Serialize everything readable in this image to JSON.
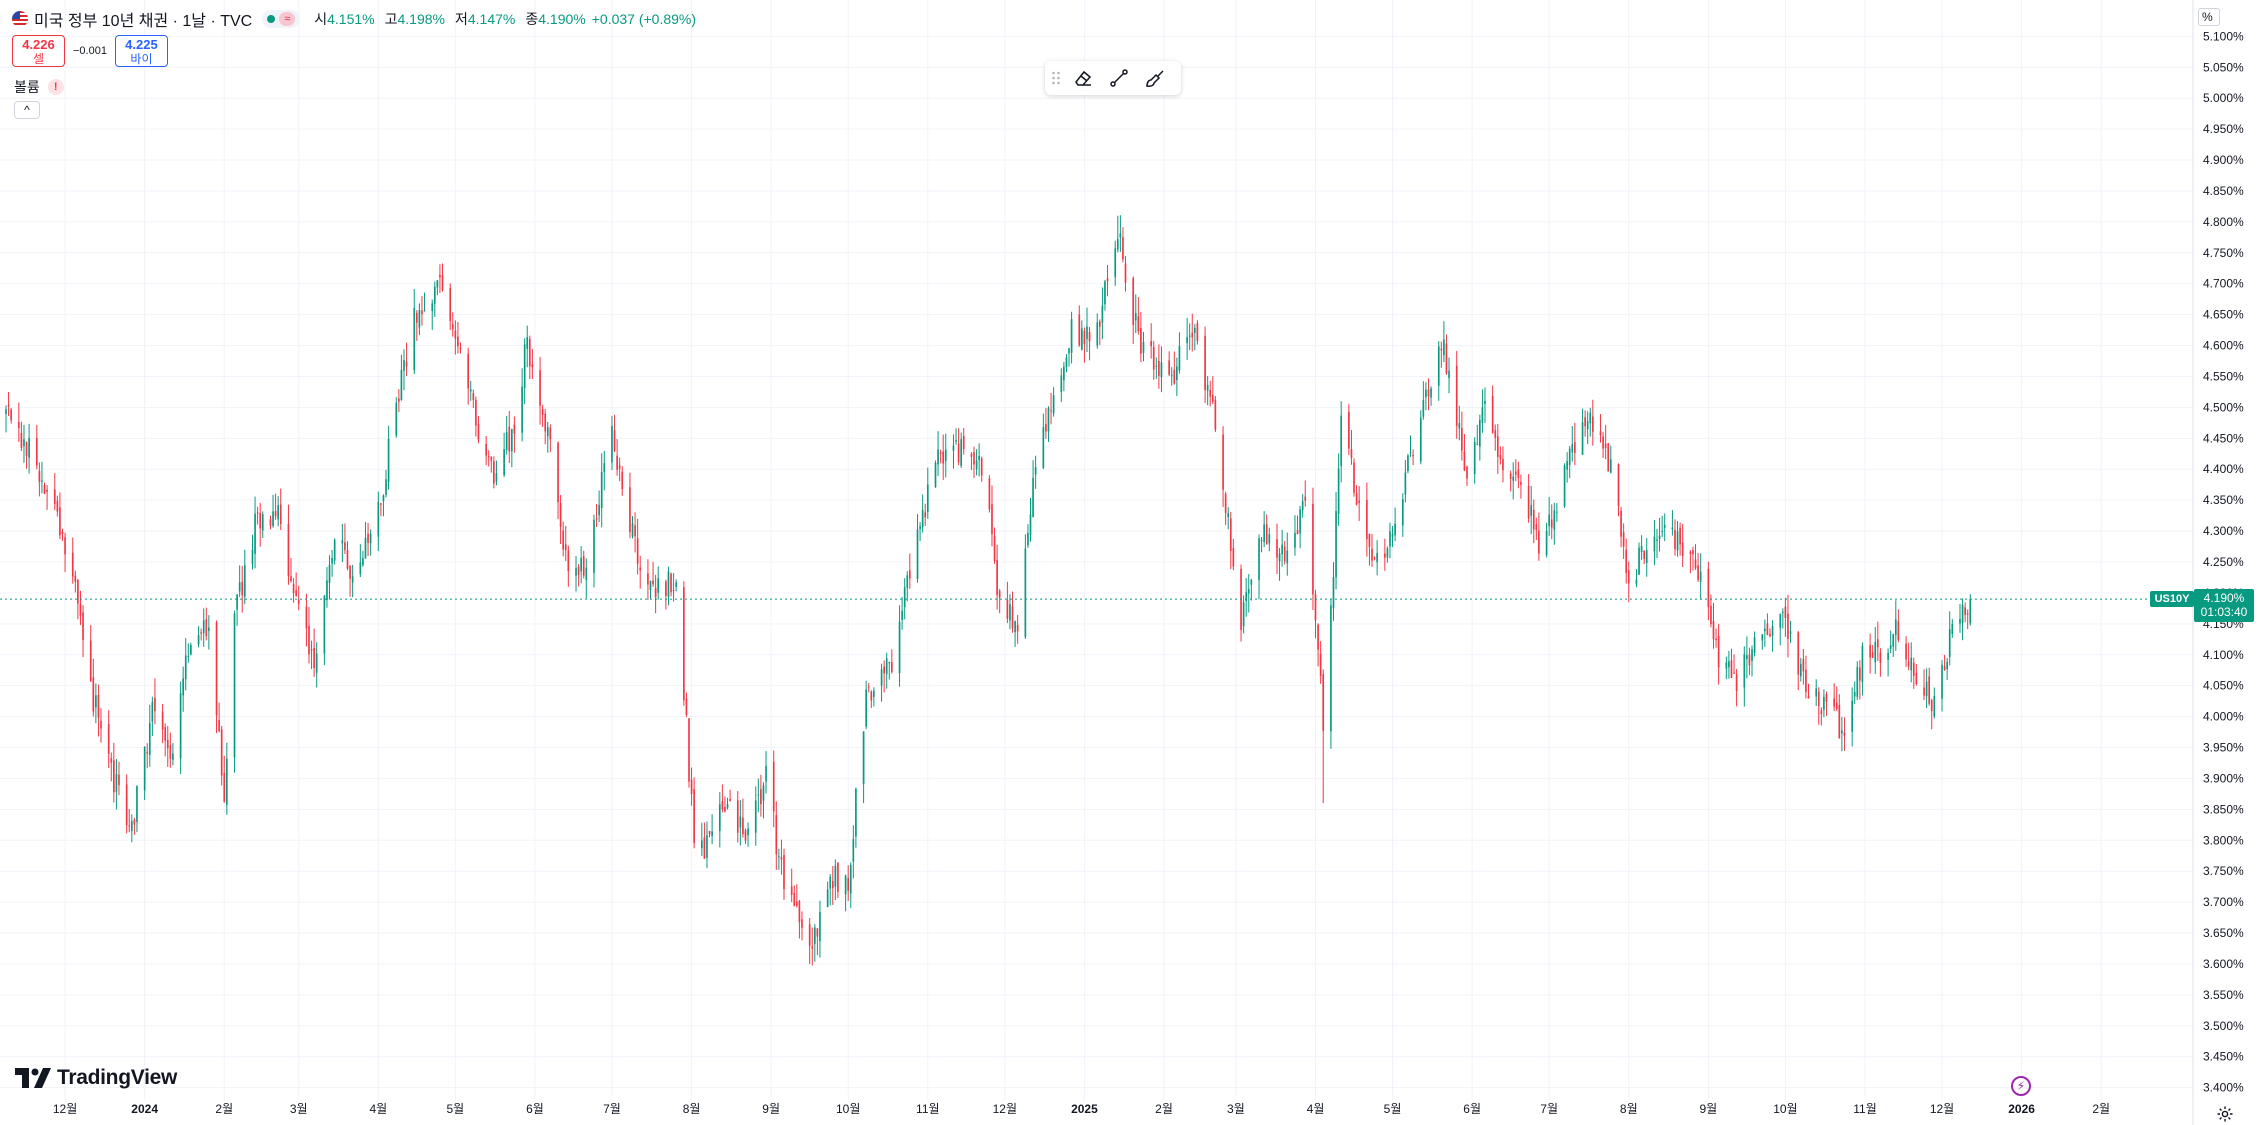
{
  "header": {
    "title": "미국 정부 10년 채권 · 1날 · TVC",
    "delay_badge": "≈",
    "ohlc": [
      {
        "key": "시",
        "value": "4.151%"
      },
      {
        "key": "고",
        "value": "4.198%"
      },
      {
        "key": "저",
        "value": "4.147%"
      },
      {
        "key": "종",
        "value": "4.190%"
      }
    ],
    "change": "+0.037 (+0.89%)"
  },
  "trade": {
    "sell_price": "4.226",
    "sell_label": "셀",
    "spread": "−0.001",
    "buy_price": "4.225",
    "buy_label": "바이"
  },
  "volume": {
    "label": "볼륨",
    "warning": "!"
  },
  "collapse_label": "^",
  "axis_unit": "%",
  "current": {
    "symbol": "US10Y",
    "price": "4.190%",
    "countdown": "01:03:40"
  },
  "brand": {
    "name": "TradingView"
  },
  "colors": {
    "up": "#089981",
    "down": "#f23645",
    "grid": "#f0f3fa",
    "accent": "#2962ff",
    "text": "#131722"
  },
  "icons": {
    "grip": "grip-icon",
    "eraser": "eraser-icon",
    "line_tool": "line-tool-icon",
    "brush": "brush-icon",
    "lightning": "lightning-icon",
    "settings": "gear-icon"
  },
  "chart_data": {
    "type": "candlestick",
    "title": "미국 정부 10년 채권 · 1날 · TVC",
    "interval": "1D",
    "y_unit": "%",
    "ylim": [
      3.38,
      5.12
    ],
    "y_ticks": [
      "5.100%",
      "5.050%",
      "5.000%",
      "4.950%",
      "4.900%",
      "4.850%",
      "4.800%",
      "4.750%",
      "4.700%",
      "4.650%",
      "4.600%",
      "4.550%",
      "4.500%",
      "4.450%",
      "4.400%",
      "4.350%",
      "4.300%",
      "4.250%",
      "4.200%",
      "4.150%",
      "4.100%",
      "4.050%",
      "4.000%",
      "3.950%",
      "3.900%",
      "3.850%",
      "3.800%",
      "3.750%",
      "3.700%",
      "3.650%",
      "3.600%",
      "3.550%",
      "3.500%",
      "3.450%",
      "3.400%"
    ],
    "x_range": [
      "2023-11-08",
      "2026-02-20"
    ],
    "x_ticks": [
      {
        "label": "12월",
        "date": "2023-12-01"
      },
      {
        "label": "2024",
        "date": "2024-01-01",
        "bold": true
      },
      {
        "label": "2월",
        "date": "2024-02-01"
      },
      {
        "label": "3월",
        "date": "2024-03-01"
      },
      {
        "label": "4월",
        "date": "2024-04-01"
      },
      {
        "label": "5월",
        "date": "2024-05-01"
      },
      {
        "label": "6월",
        "date": "2024-06-01"
      },
      {
        "label": "7월",
        "date": "2024-07-01"
      },
      {
        "label": "8월",
        "date": "2024-08-01"
      },
      {
        "label": "9월",
        "date": "2024-09-01"
      },
      {
        "label": "10월",
        "date": "2024-10-01"
      },
      {
        "label": "11월",
        "date": "2024-11-01"
      },
      {
        "label": "12월",
        "date": "2024-12-01"
      },
      {
        "label": "2025",
        "date": "2025-01-01",
        "bold": true
      },
      {
        "label": "2월",
        "date": "2025-02-01"
      },
      {
        "label": "3월",
        "date": "2025-03-01"
      },
      {
        "label": "4월",
        "date": "2025-04-01"
      },
      {
        "label": "5월",
        "date": "2025-05-01"
      },
      {
        "label": "6월",
        "date": "2025-06-01"
      },
      {
        "label": "7월",
        "date": "2025-07-01"
      },
      {
        "label": "8월",
        "date": "2025-08-01"
      },
      {
        "label": "9월",
        "date": "2025-09-01"
      },
      {
        "label": "10월",
        "date": "2025-10-01"
      },
      {
        "label": "11월",
        "date": "2025-11-01"
      },
      {
        "label": "12월",
        "date": "2025-12-01"
      },
      {
        "label": "2026",
        "date": "2026-01-01",
        "bold": true
      },
      {
        "label": "2월",
        "date": "2026-02-01"
      }
    ],
    "price_line": 4.19,
    "closes_path": [
      {
        "date": "2023-11-08",
        "close": 4.49
      },
      {
        "date": "2023-11-13",
        "close": 4.46
      },
      {
        "date": "2023-11-20",
        "close": 4.41
      },
      {
        "date": "2023-11-27",
        "close": 4.34
      },
      {
        "date": "2023-12-04",
        "close": 4.22
      },
      {
        "date": "2023-12-11",
        "close": 4.05
      },
      {
        "date": "2023-12-18",
        "close": 3.92
      },
      {
        "date": "2023-12-27",
        "close": 3.82
      },
      {
        "date": "2024-01-05",
        "close": 4.03
      },
      {
        "date": "2024-01-12",
        "close": 3.94
      },
      {
        "date": "2024-01-19",
        "close": 4.13
      },
      {
        "date": "2024-01-26",
        "close": 4.15
      },
      {
        "date": "2024-02-01",
        "close": 3.88
      },
      {
        "date": "2024-02-05",
        "close": 4.16
      },
      {
        "date": "2024-02-13",
        "close": 4.31
      },
      {
        "date": "2024-02-22",
        "close": 4.32
      },
      {
        "date": "2024-03-01",
        "close": 4.18
      },
      {
        "date": "2024-03-08",
        "close": 4.08
      },
      {
        "date": "2024-03-15",
        "close": 4.3
      },
      {
        "date": "2024-03-22",
        "close": 4.22
      },
      {
        "date": "2024-04-01",
        "close": 4.33
      },
      {
        "date": "2024-04-10",
        "close": 4.55
      },
      {
        "date": "2024-04-16",
        "close": 4.66
      },
      {
        "date": "2024-04-25",
        "close": 4.7
      },
      {
        "date": "2024-05-01",
        "close": 4.63
      },
      {
        "date": "2024-05-08",
        "close": 4.49
      },
      {
        "date": "2024-05-16",
        "close": 4.38
      },
      {
        "date": "2024-05-24",
        "close": 4.47
      },
      {
        "date": "2024-05-29",
        "close": 4.61
      },
      {
        "date": "2024-06-07",
        "close": 4.43
      },
      {
        "date": "2024-06-14",
        "close": 4.22
      },
      {
        "date": "2024-06-21",
        "close": 4.25
      },
      {
        "date": "2024-07-01",
        "close": 4.46
      },
      {
        "date": "2024-07-10",
        "close": 4.28
      },
      {
        "date": "2024-07-18",
        "close": 4.2
      },
      {
        "date": "2024-07-26",
        "close": 4.23
      },
      {
        "date": "2024-08-02",
        "close": 3.79
      },
      {
        "date": "2024-08-05",
        "close": 3.78
      },
      {
        "date": "2024-08-14",
        "close": 3.85
      },
      {
        "date": "2024-08-23",
        "close": 3.8
      },
      {
        "date": "2024-08-30",
        "close": 3.91
      },
      {
        "date": "2024-09-06",
        "close": 3.72
      },
      {
        "date": "2024-09-16",
        "close": 3.62
      },
      {
        "date": "2024-09-24",
        "close": 3.74
      },
      {
        "date": "2024-10-01",
        "close": 3.74
      },
      {
        "date": "2024-10-08",
        "close": 4.03
      },
      {
        "date": "2024-10-18",
        "close": 4.08
      },
      {
        "date": "2024-10-25",
        "close": 4.24
      },
      {
        "date": "2024-11-06",
        "close": 4.43
      },
      {
        "date": "2024-11-14",
        "close": 4.43
      },
      {
        "date": "2024-11-22",
        "close": 4.41
      },
      {
        "date": "2024-11-29",
        "close": 4.18
      },
      {
        "date": "2024-12-06",
        "close": 4.15
      },
      {
        "date": "2024-12-13",
        "close": 4.4
      },
      {
        "date": "2024-12-20",
        "close": 4.52
      },
      {
        "date": "2024-12-27",
        "close": 4.62
      },
      {
        "date": "2025-01-06",
        "close": 4.62
      },
      {
        "date": "2025-01-14",
        "close": 4.79
      },
      {
        "date": "2025-01-22",
        "close": 4.61
      },
      {
        "date": "2025-02-03",
        "close": 4.54
      },
      {
        "date": "2025-02-12",
        "close": 4.62
      },
      {
        "date": "2025-02-20",
        "close": 4.5
      },
      {
        "date": "2025-03-03",
        "close": 4.16
      },
      {
        "date": "2025-03-12",
        "close": 4.31
      },
      {
        "date": "2025-03-20",
        "close": 4.25
      },
      {
        "date": "2025-03-28",
        "close": 4.36
      },
      {
        "date": "2025-04-04",
        "close": 4.0
      },
      {
        "date": "2025-04-07",
        "close": 4.17
      },
      {
        "date": "2025-04-11",
        "close": 4.48
      },
      {
        "date": "2025-04-18",
        "close": 4.33
      },
      {
        "date": "2025-04-25",
        "close": 4.24
      },
      {
        "date": "2025-05-02",
        "close": 4.31
      },
      {
        "date": "2025-05-14",
        "close": 4.53
      },
      {
        "date": "2025-05-21",
        "close": 4.6
      },
      {
        "date": "2025-05-30",
        "close": 4.4
      },
      {
        "date": "2025-06-06",
        "close": 4.51
      },
      {
        "date": "2025-06-13",
        "close": 4.41
      },
      {
        "date": "2025-06-20",
        "close": 4.38
      },
      {
        "date": "2025-06-27",
        "close": 4.28
      },
      {
        "date": "2025-07-03",
        "close": 4.34
      },
      {
        "date": "2025-07-15",
        "close": 4.49
      },
      {
        "date": "2025-07-24",
        "close": 4.42
      },
      {
        "date": "2025-08-01",
        "close": 4.22
      },
      {
        "date": "2025-08-08",
        "close": 4.28
      },
      {
        "date": "2025-08-15",
        "close": 4.32
      },
      {
        "date": "2025-08-22",
        "close": 4.26
      },
      {
        "date": "2025-08-29",
        "close": 4.23
      },
      {
        "date": "2025-09-05",
        "close": 4.08
      },
      {
        "date": "2025-09-12",
        "close": 4.06
      },
      {
        "date": "2025-09-22",
        "close": 4.14
      },
      {
        "date": "2025-09-30",
        "close": 4.15
      },
      {
        "date": "2025-10-10",
        "close": 4.04
      },
      {
        "date": "2025-10-17",
        "close": 4.01
      },
      {
        "date": "2025-10-24",
        "close": 3.98
      },
      {
        "date": "2025-10-31",
        "close": 4.09
      },
      {
        "date": "2025-11-07",
        "close": 4.11
      },
      {
        "date": "2025-11-14",
        "close": 4.14
      },
      {
        "date": "2025-11-21",
        "close": 4.06
      },
      {
        "date": "2025-11-28",
        "close": 4.02
      },
      {
        "date": "2025-12-05",
        "close": 4.14
      },
      {
        "date": "2025-12-10",
        "close": 4.17
      },
      {
        "date": "2025-12-12",
        "close": 4.19
      }
    ],
    "extremes": [
      {
        "label": "2024 low",
        "date": "2024-09-16",
        "low": 3.6
      },
      {
        "label": "2025 high",
        "date": "2025-01-14",
        "high": 4.81
      },
      {
        "label": "April 2025 low",
        "date": "2025-04-04",
        "low": 3.86
      }
    ],
    "volatility": 0.035,
    "seed": 20251212
  }
}
